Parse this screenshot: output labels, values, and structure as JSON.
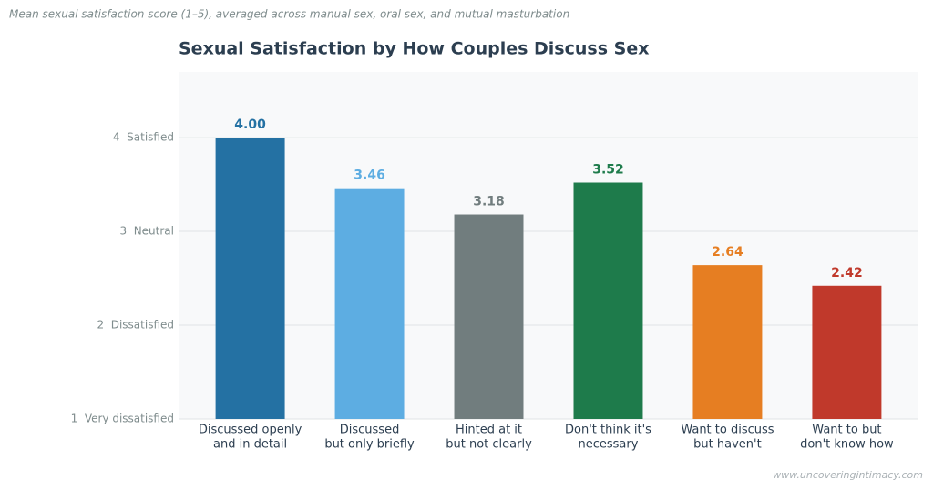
{
  "chart_data": {
    "type": "bar",
    "subtitle": "Mean sexual satisfaction score (1–5), averaged across manual sex, oral sex, and mutual masturbation",
    "title": "Sexual Satisfaction by How Couples Discuss Sex",
    "source": "www.uncoveringintimacy.com",
    "categories": [
      [
        "Discussed openly",
        "and in detail"
      ],
      [
        "Discussed",
        "but only briefly"
      ],
      [
        "Hinted at it",
        "but not clearly"
      ],
      [
        "Don't think it's",
        "necessary"
      ],
      [
        "Want to discuss",
        "but haven't"
      ],
      [
        "Want to but",
        "don't know how"
      ]
    ],
    "values": [
      4.0,
      3.46,
      3.18,
      3.52,
      2.64,
      2.42
    ],
    "value_labels": [
      "4.00",
      "3.46",
      "3.18",
      "3.52",
      "2.64",
      "2.42"
    ],
    "colors": [
      "#2471a3",
      "#5dade2",
      "#717d7e",
      "#1e7b4b",
      "#e67e22",
      "#c0392b"
    ],
    "ylim": [
      1,
      4.7
    ],
    "yticks": [
      {
        "value": 1,
        "label": "1  Very dissatisfied"
      },
      {
        "value": 2,
        "label": "2  Dissatisfied"
      },
      {
        "value": 3,
        "label": "3  Neutral"
      },
      {
        "value": 4,
        "label": "4  Satisfied"
      }
    ],
    "grid": true
  }
}
